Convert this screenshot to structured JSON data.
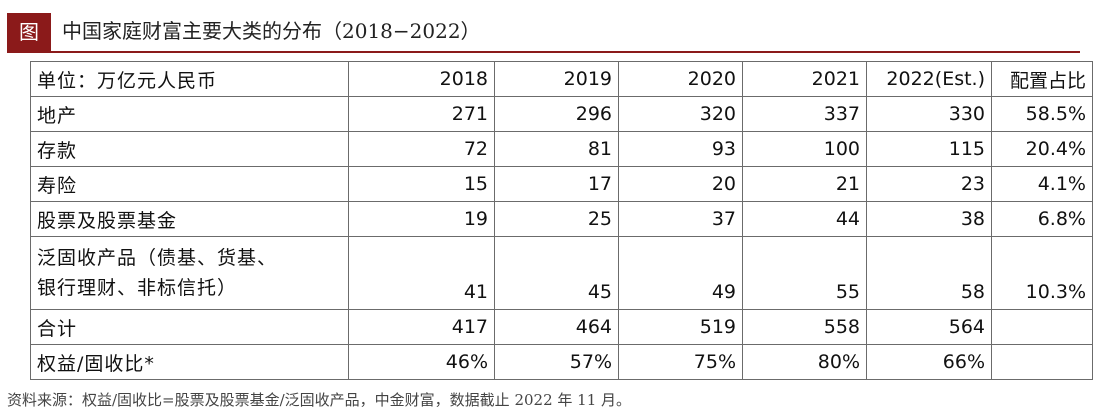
{
  "title": {
    "badge": "图",
    "text": "中国家庭财富主要大类的分布（2018−2022）"
  },
  "table": {
    "header": [
      "单位：万亿元人民币",
      "2018",
      "2019",
      "2020",
      "2021",
      "2022(Est.)",
      "配置占比"
    ],
    "rows": [
      {
        "label": "地产",
        "values": [
          "271",
          "296",
          "320",
          "337",
          "330",
          "58.5%"
        ]
      },
      {
        "label": "存款",
        "values": [
          "72",
          "81",
          "93",
          "100",
          "115",
          "20.4%"
        ]
      },
      {
        "label": "寿险",
        "values": [
          "15",
          "17",
          "20",
          "21",
          "23",
          "4.1%"
        ]
      },
      {
        "label": "股票及股票基金",
        "values": [
          "19",
          "25",
          "37",
          "44",
          "38",
          "6.8%"
        ]
      },
      {
        "label_line1": "泛固收产品（债基、货基、",
        "label_line2": "银行理财、非标信托）",
        "values": [
          "41",
          "45",
          "49",
          "55",
          "58",
          "10.3%"
        ]
      },
      {
        "label": "合计",
        "values": [
          "417",
          "464",
          "519",
          "558",
          "564",
          ""
        ]
      },
      {
        "label": "权益/固收比*",
        "values": [
          "46%",
          "57%",
          "75%",
          "80%",
          "66%",
          ""
        ]
      }
    ]
  },
  "footer": "资料来源：权益/固收比=股票及股票基金/泛固收产品，中金财富，数据截止 2022 年 11 月。"
}
